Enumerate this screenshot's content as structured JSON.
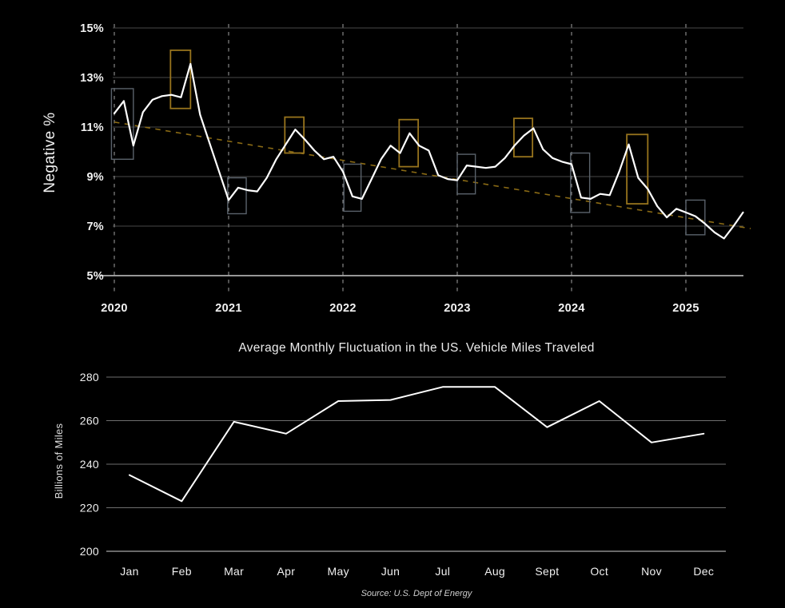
{
  "page": {
    "background": "#000000"
  },
  "colors": {
    "line_white": "#ffffff",
    "box_orange": "#97741d",
    "box_gray": "#5a626b",
    "trend_orange": "#8a6a14",
    "grid_top": "#474747",
    "axis_top": "#c9c9c9",
    "grid_bottom": "#6e6e6e",
    "year_dash": "#7d7d7d"
  },
  "chart_data": [
    {
      "id": "negative-pct-chart",
      "type": "line",
      "title": "",
      "ylabel": "Negative %",
      "yticks": [
        "15%",
        "13%",
        "11%",
        "9%",
        "7%",
        "5%"
      ],
      "ytick_values": [
        15,
        13,
        11,
        9,
        7,
        5
      ],
      "ylim": [
        5,
        15
      ],
      "xticks": [
        "2020",
        "2021",
        "2022",
        "2023",
        "2024",
        "2025"
      ],
      "x_unit": "month",
      "x_start": "Jan 2020",
      "x_end": "Jul 2025",
      "grid": "horizontal solid + vertical dashed year lines",
      "legend_position": "none",
      "series": [
        {
          "name": "negative-pct-monthly",
          "values": [
            11.55,
            12.05,
            10.25,
            11.6,
            12.1,
            12.25,
            12.3,
            12.2,
            13.55,
            11.5,
            10.35,
            9.2,
            8.05,
            8.55,
            8.45,
            8.4,
            8.95,
            9.7,
            10.3,
            10.9,
            10.5,
            10.05,
            9.7,
            9.8,
            9.2,
            8.2,
            8.1,
            8.9,
            9.7,
            10.25,
            9.95,
            10.75,
            10.25,
            10.05,
            9.05,
            8.9,
            8.85,
            9.45,
            9.4,
            9.35,
            9.4,
            9.75,
            10.25,
            10.65,
            10.95,
            10.1,
            9.75,
            9.6,
            9.5,
            8.15,
            8.1,
            8.3,
            8.25,
            9.2,
            10.3,
            8.95,
            8.5,
            7.8,
            7.35,
            7.7,
            7.55,
            7.4,
            7.1,
            6.75,
            6.5,
            7.0,
            7.55
          ]
        }
      ],
      "trend_line": {
        "style": "dashed",
        "start_value": 11.2,
        "end_value": 6.9
      },
      "highlight_boxes": [
        {
          "color": "gray",
          "month_start": -0.3,
          "month_end": 2.0,
          "value_low": 9.7,
          "value_high": 12.55
        },
        {
          "color": "orange",
          "month_start": 5.9,
          "month_end": 8.0,
          "value_low": 11.75,
          "value_high": 14.1
        },
        {
          "color": "gray",
          "month_start": 11.9,
          "month_end": 13.85,
          "value_low": 7.5,
          "value_high": 8.95
        },
        {
          "color": "orange",
          "month_start": 17.9,
          "month_end": 19.9,
          "value_low": 9.95,
          "value_high": 11.4
        },
        {
          "color": "gray",
          "month_start": 24.1,
          "month_end": 25.9,
          "value_low": 7.6,
          "value_high": 9.5
        },
        {
          "color": "orange",
          "month_start": 29.9,
          "month_end": 31.9,
          "value_low": 9.4,
          "value_high": 11.3
        },
        {
          "color": "gray",
          "month_start": 36.0,
          "month_end": 37.9,
          "value_low": 8.3,
          "value_high": 9.9
        },
        {
          "color": "orange",
          "month_start": 41.95,
          "month_end": 43.9,
          "value_low": 9.8,
          "value_high": 11.35
        },
        {
          "color": "gray",
          "month_start": 47.9,
          "month_end": 49.9,
          "value_low": 7.55,
          "value_high": 9.95
        },
        {
          "color": "orange",
          "month_start": 53.8,
          "month_end": 56.0,
          "value_low": 7.9,
          "value_high": 10.7
        },
        {
          "color": "gray",
          "month_start": 60.0,
          "month_end": 62.0,
          "value_low": 6.65,
          "value_high": 8.05
        }
      ]
    },
    {
      "id": "vehicle-miles-chart",
      "type": "line",
      "title": "Average Monthly Fluctuation in the US. Vehicle Miles Traveled",
      "ylabel": "Billions of Miles",
      "categories": [
        "Jan",
        "Feb",
        "Mar",
        "Apr",
        "May",
        "Jun",
        "Jul",
        "Aug",
        "Sept",
        "Oct",
        "Nov",
        "Dec"
      ],
      "values": [
        235,
        223,
        259.5,
        254,
        269,
        269.5,
        275.5,
        275.5,
        257,
        269,
        250,
        254
      ],
      "yticks": [
        "280",
        "260",
        "240",
        "220",
        "200"
      ],
      "ytick_values": [
        280,
        260,
        240,
        220,
        200
      ],
      "ylim": [
        196,
        284
      ],
      "grid": "horizontal solid",
      "legend_position": "none",
      "source": "Source: U.S. Dept of Energy"
    }
  ]
}
